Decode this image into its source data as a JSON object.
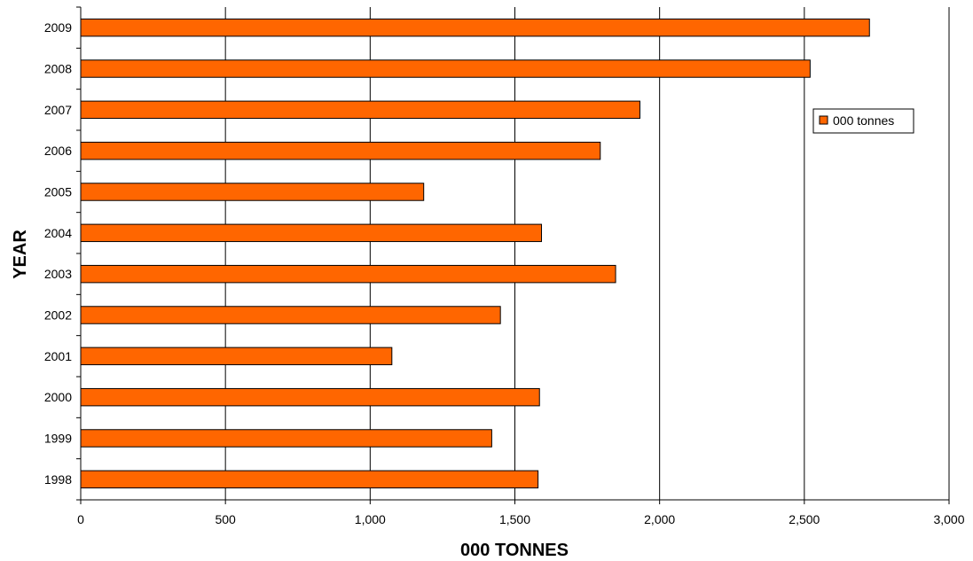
{
  "chart_data": {
    "type": "bar",
    "orientation": "horizontal",
    "categories": [
      "1998",
      "1999",
      "2000",
      "2001",
      "2002",
      "2003",
      "2004",
      "2005",
      "2006",
      "2007",
      "2008",
      "2009"
    ],
    "series": [
      {
        "name": "000 tonnes",
        "values": [
          1580,
          1420,
          1585,
          1075,
          1450,
          1848,
          1592,
          1185,
          1795,
          1932,
          2520,
          2725
        ],
        "color": "#FF6600"
      }
    ],
    "xlabel": "000 TONNES",
    "ylabel": "YEAR",
    "xlim": [
      0,
      3000
    ],
    "x_ticks": [
      "0",
      "500",
      "1,000",
      "1,500",
      "2,000",
      "2,500",
      "3,000"
    ],
    "x_tick_values": [
      0,
      500,
      1000,
      1500,
      2000,
      2500,
      3000
    ],
    "grid": "vertical",
    "legend_position": "right"
  }
}
